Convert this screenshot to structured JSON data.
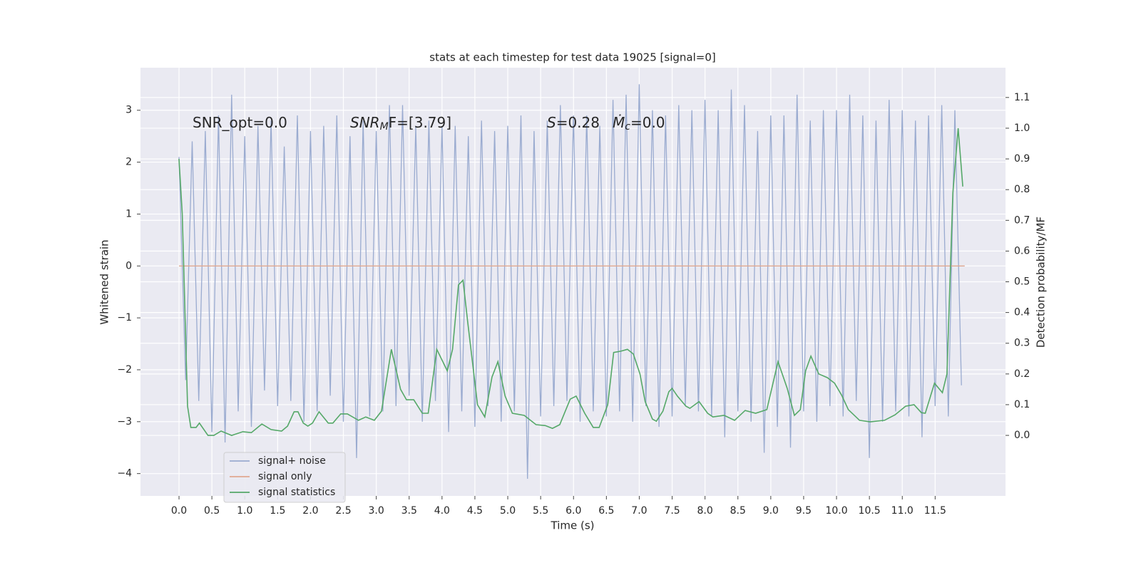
{
  "chart_data": {
    "type": "line",
    "title": "stats at each timestep for test data 19025 [signal=0]",
    "xlabel": "Time (s)",
    "ylabel": "Whitened strain",
    "y2label": "Detection probability/MF",
    "annotations": [
      [
        "SNR_opt=0.0"
      ],
      [
        "SNR",
        "M",
        "F=[3.79]"
      ],
      [
        "S",
        "=0.28"
      ],
      [
        "Ṁ",
        "c",
        "=0.0"
      ]
    ],
    "xlim": [
      -0.586,
      12.57
    ],
    "ylim": [
      -4.43,
      3.82
    ],
    "y2lim": [
      -0.197,
      1.197
    ],
    "xticks": [
      {
        "value": 0,
        "label": "0.0"
      },
      0.5,
      {
        "value": 1,
        "label": "1.0"
      },
      1.5,
      {
        "value": 2,
        "label": "2.0"
      },
      2.5,
      {
        "value": 3,
        "label": "3.0"
      },
      3.5,
      {
        "value": 4,
        "label": "4.0"
      },
      4.5,
      {
        "value": 5,
        "label": "5.0"
      },
      5.5,
      {
        "value": 6,
        "label": "6.0"
      },
      6.5,
      {
        "value": 7,
        "label": "7.0"
      },
      7.5,
      {
        "value": 8,
        "label": "8.0"
      },
      8.5,
      {
        "value": 9,
        "label": "9.0"
      },
      9.5,
      {
        "value": 10,
        "label": "10.0"
      },
      10.5,
      {
        "value": 11,
        "label": "11.0"
      },
      11.5
    ],
    "yticks": [
      {
        "value": -4,
        "label": "−4"
      },
      {
        "value": -3,
        "label": "−3"
      },
      {
        "value": -2,
        "label": "−2"
      },
      {
        "value": -1,
        "label": "−1"
      },
      0,
      1,
      2,
      3
    ],
    "y2ticks": [
      {
        "value": 0,
        "label": "0.0"
      },
      0.1,
      0.2,
      0.3,
      0.4,
      0.5,
      0.6,
      0.7,
      0.8,
      0.9,
      {
        "value": 1,
        "label": "1.0"
      },
      1.1
    ],
    "grid": true,
    "legend": "lower left",
    "series": [
      {
        "name": "signal+ noise",
        "color": "#9aabd0",
        "x": [
          0,
          0.1,
          0.2,
          0.3,
          0.4,
          0.5,
          0.6,
          0.7,
          0.8,
          0.9,
          1,
          1.1,
          1.2,
          1.3,
          1.4,
          1.5,
          1.6,
          1.7,
          1.8,
          1.9,
          2,
          2.1,
          2.2,
          2.3,
          2.4,
          2.5,
          2.6,
          2.7,
          2.8,
          2.9,
          3,
          3.1,
          3.2,
          3.3,
          3.4,
          3.5,
          3.6,
          3.7,
          3.8,
          3.9,
          4,
          4.1,
          4.2,
          4.3,
          4.4,
          4.5,
          4.6,
          4.7,
          4.8,
          4.9,
          5,
          5.1,
          5.2,
          5.3,
          5.4,
          5.5,
          5.6,
          5.7,
          5.8,
          5.9,
          6,
          6.1,
          6.2,
          6.3,
          6.4,
          6.5,
          6.6,
          6.7,
          6.8,
          6.9,
          7,
          7.1,
          7.2,
          7.3,
          7.4,
          7.5,
          7.6,
          7.7,
          7.8,
          7.9,
          8,
          8.1,
          8.2,
          8.3,
          8.4,
          8.5,
          8.6,
          8.7,
          8.8,
          8.9,
          9,
          9.1,
          9.2,
          9.3,
          9.4,
          9.5,
          9.6,
          9.7,
          9.8,
          9.9,
          10,
          10.1,
          10.2,
          10.3,
          10.4,
          10.5,
          10.6,
          10.7,
          10.8,
          10.9,
          11,
          11.1,
          11.2,
          11.3,
          11.4,
          11.5,
          11.6,
          11.7,
          11.8,
          11.9
        ],
        "values": [
          2.1,
          -2.2,
          2.4,
          -2.6,
          2.6,
          -3.2,
          2.9,
          -3.4,
          3.3,
          -2.8,
          2.5,
          -3.1,
          2.7,
          -2.4,
          2.8,
          -2.7,
          2.3,
          -2.6,
          2.9,
          -3.0,
          2.6,
          -2.8,
          2.7,
          -2.5,
          2.9,
          -3.0,
          2.5,
          -3.7,
          2.8,
          -2.9,
          2.6,
          -2.8,
          3.1,
          -2.7,
          3.1,
          -2.5,
          2.7,
          -3.0,
          2.8,
          -2.6,
          2.7,
          -3.2,
          2.7,
          -2.8,
          2.5,
          -3.1,
          2.8,
          -2.7,
          2.6,
          -3.0,
          2.7,
          -2.8,
          2.9,
          -4.1,
          2.6,
          -2.9,
          2.8,
          -2.7,
          3.1,
          -2.6,
          2.9,
          -3.0,
          2.9,
          -2.8,
          2.7,
          -2.9,
          3.2,
          -2.8,
          3.3,
          -3.0,
          3.5,
          -2.7,
          3.0,
          -3.1,
          2.9,
          -2.9,
          3.1,
          -2.7,
          3.0,
          -2.8,
          3.2,
          -2.9,
          3.0,
          -3.3,
          3.4,
          -2.8,
          3.1,
          -3.0,
          2.6,
          -3.6,
          2.9,
          -3.1,
          2.9,
          -3.5,
          3.3,
          -2.8,
          2.8,
          -3.0,
          3.0,
          -2.7,
          3.0,
          -2.9,
          3.3,
          -2.6,
          2.9,
          -3.7,
          2.8,
          -3.0,
          3.2,
          -2.8,
          3.0,
          -2.9,
          2.8,
          -3.3,
          2.9,
          -2.7,
          3.1,
          -2.9,
          3.0,
          -2.3
        ]
      },
      {
        "name": "signal only",
        "color": "#e0a890",
        "x": [
          0,
          11.95
        ],
        "values": [
          0,
          0
        ]
      },
      {
        "name": "signal statistics",
        "color": "#55a868",
        "axis": "y2",
        "x": [
          0,
          0.05,
          0.13,
          0.18,
          0.26,
          0.31,
          0.44,
          0.53,
          0.64,
          0.8,
          0.97,
          1.1,
          1.26,
          1.4,
          1.56,
          1.65,
          1.75,
          1.81,
          1.89,
          1.96,
          2.03,
          2.13,
          2.27,
          2.34,
          2.46,
          2.56,
          2.73,
          2.84,
          2.97,
          3.08,
          3.23,
          3.37,
          3.46,
          3.57,
          3.7,
          3.79,
          3.92,
          4.08,
          4.16,
          4.25,
          4.32,
          4.39,
          4.54,
          4.65,
          4.76,
          4.85,
          4.96,
          5.07,
          5.25,
          5.43,
          5.57,
          5.68,
          5.79,
          5.95,
          6.04,
          6.17,
          6.3,
          6.39,
          6.52,
          6.61,
          6.72,
          6.82,
          6.91,
          7.01,
          7.09,
          7.2,
          7.26,
          7.36,
          7.45,
          7.5,
          7.58,
          7.71,
          7.77,
          7.91,
          8.04,
          8.12,
          8.29,
          8.45,
          8.61,
          8.77,
          8.94,
          9.11,
          9.25,
          9.36,
          9.45,
          9.53,
          9.61,
          9.73,
          9.86,
          9.97,
          10.08,
          10.18,
          10.35,
          10.51,
          10.73,
          10.89,
          11.05,
          11.18,
          11.29,
          11.35,
          11.49,
          11.61,
          11.68,
          11.77,
          11.85,
          11.92
        ],
        "values": [
          0.9,
          0.72,
          0.095,
          0.026,
          0.026,
          0.04,
          0.0,
          0.0,
          0.014,
          0.0,
          0.012,
          0.009,
          0.037,
          0.019,
          0.014,
          0.03,
          0.077,
          0.077,
          0.04,
          0.03,
          0.04,
          0.077,
          0.04,
          0.04,
          0.07,
          0.07,
          0.049,
          0.06,
          0.049,
          0.079,
          0.28,
          0.15,
          0.116,
          0.116,
          0.072,
          0.072,
          0.28,
          0.21,
          0.28,
          0.49,
          0.505,
          0.37,
          0.1,
          0.06,
          0.19,
          0.24,
          0.128,
          0.072,
          0.065,
          0.035,
          0.032,
          0.023,
          0.035,
          0.118,
          0.128,
          0.072,
          0.026,
          0.026,
          0.1,
          0.27,
          0.274,
          0.28,
          0.265,
          0.2,
          0.11,
          0.053,
          0.046,
          0.079,
          0.142,
          0.153,
          0.128,
          0.095,
          0.088,
          0.11,
          0.072,
          0.06,
          0.065,
          0.049,
          0.081,
          0.072,
          0.084,
          0.24,
          0.153,
          0.065,
          0.084,
          0.21,
          0.258,
          0.2,
          0.188,
          0.17,
          0.13,
          0.084,
          0.049,
          0.044,
          0.049,
          0.067,
          0.095,
          0.1,
          0.074,
          0.072,
          0.17,
          0.139,
          0.2,
          0.79,
          1.0,
          0.81
        ]
      }
    ]
  }
}
